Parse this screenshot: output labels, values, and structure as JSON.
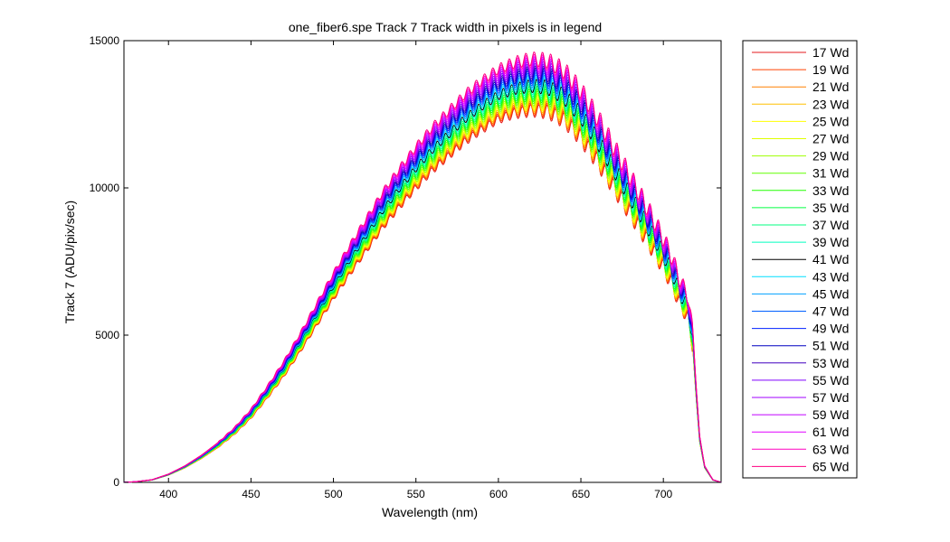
{
  "figure": {
    "title": "one_fiber6.spe   Track 7     Track width in pixels is in legend"
  },
  "chart_data": {
    "type": "line",
    "title": "one_fiber6.spe   Track 7     Track width in pixels is in legend",
    "xlabel": "Wavelength (nm)",
    "ylabel": "Track 7 (ADU/pix/sec)",
    "xlim": [
      373,
      735
    ],
    "ylim": [
      0,
      15000
    ],
    "xticks": [
      400,
      450,
      500,
      550,
      600,
      650,
      700
    ],
    "yticks": [
      0,
      5000,
      10000,
      15000
    ],
    "grid": false,
    "legend_position": "outside-right",
    "x": [
      373,
      380,
      390,
      400,
      410,
      420,
      430,
      440,
      450,
      460,
      470,
      480,
      490,
      500,
      510,
      520,
      530,
      540,
      550,
      560,
      570,
      580,
      590,
      600,
      610,
      620,
      630,
      640,
      650,
      660,
      670,
      680,
      690,
      700,
      705,
      710,
      715,
      718,
      720,
      722,
      725,
      730,
      735
    ],
    "base_y": [
      0,
      20,
      80,
      250,
      500,
      820,
      1200,
      1650,
      2200,
      2900,
      3650,
      4500,
      5400,
      6300,
      7150,
      7950,
      8750,
      9450,
      10100,
      10700,
      11200,
      11700,
      12100,
      12450,
      12650,
      12750,
      12700,
      12400,
      11800,
      11000,
      10100,
      9200,
      8300,
      7350,
      6800,
      6100,
      5600,
      4500,
      2800,
      1400,
      500,
      80,
      0
    ],
    "series": [
      {
        "name": "17 Wd",
        "scale": 0.99,
        "color": "#e41a1c"
      },
      {
        "name": "19 Wd",
        "scale": 0.995,
        "color": "#ff4000"
      },
      {
        "name": "21 Wd",
        "scale": 1.0,
        "color": "#ff8000"
      },
      {
        "name": "23 Wd",
        "scale": 1.005,
        "color": "#ffbf00"
      },
      {
        "name": "25 Wd",
        "scale": 1.01,
        "color": "#ffff00"
      },
      {
        "name": "27 Wd",
        "scale": 1.015,
        "color": "#dfff00"
      },
      {
        "name": "29 Wd",
        "scale": 1.02,
        "color": "#9fff00"
      },
      {
        "name": "31 Wd",
        "scale": 1.026,
        "color": "#60ff00"
      },
      {
        "name": "33 Wd",
        "scale": 1.032,
        "color": "#20ff00"
      },
      {
        "name": "35 Wd",
        "scale": 1.038,
        "color": "#00ff40"
      },
      {
        "name": "37 Wd",
        "scale": 1.044,
        "color": "#00ff80"
      },
      {
        "name": "39 Wd",
        "scale": 1.05,
        "color": "#00ffbf"
      },
      {
        "name": "41 Wd",
        "scale": 1.056,
        "color": "#000000"
      },
      {
        "name": "43 Wd",
        "scale": 1.062,
        "color": "#00dfff"
      },
      {
        "name": "45 Wd",
        "scale": 1.068,
        "color": "#00a0ff"
      },
      {
        "name": "47 Wd",
        "scale": 1.074,
        "color": "#0060ff"
      },
      {
        "name": "49 Wd",
        "scale": 1.08,
        "color": "#0020ff"
      },
      {
        "name": "51 Wd",
        "scale": 1.086,
        "color": "#0000c0"
      },
      {
        "name": "53 Wd",
        "scale": 1.092,
        "color": "#4000bf"
      },
      {
        "name": "55 Wd",
        "scale": 1.098,
        "color": "#8000ff"
      },
      {
        "name": "57 Wd",
        "scale": 1.104,
        "color": "#a000ff"
      },
      {
        "name": "59 Wd",
        "scale": 1.11,
        "color": "#c000ff"
      },
      {
        "name": "61 Wd",
        "scale": 1.116,
        "color": "#e000ff"
      },
      {
        "name": "63 Wd",
        "scale": 1.122,
        "color": "#ff00c0"
      },
      {
        "name": "65 Wd",
        "scale": 1.128,
        "color": "#ff0080"
      }
    ]
  }
}
